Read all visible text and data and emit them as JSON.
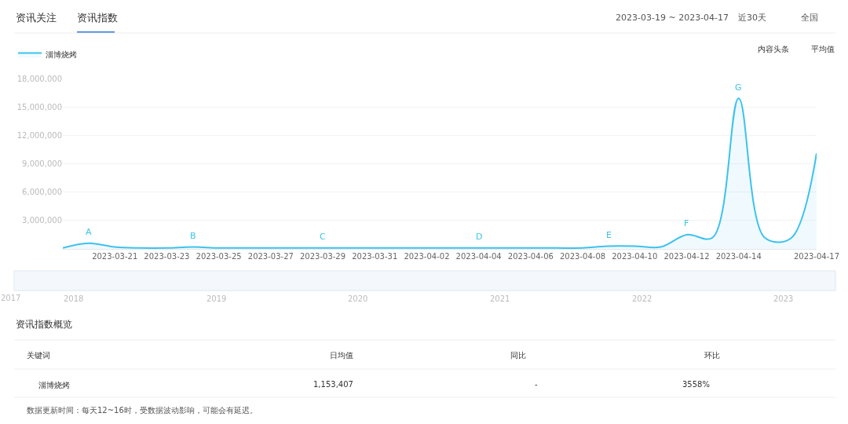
{
  "chart_data": {
    "type": "area",
    "title": "资讯指数",
    "x": [
      "2023-03-19",
      "2023-03-20",
      "2023-03-21",
      "2023-03-22",
      "2023-03-23",
      "2023-03-24",
      "2023-03-25",
      "2023-03-26",
      "2023-03-27",
      "2023-03-28",
      "2023-03-29",
      "2023-03-30",
      "2023-03-31",
      "2023-04-01",
      "2023-04-02",
      "2023-04-03",
      "2023-04-04",
      "2023-04-05",
      "2023-04-06",
      "2023-04-07",
      "2023-04-08",
      "2023-04-09",
      "2023-04-10",
      "2023-04-11",
      "2023-04-12",
      "2023-04-13",
      "2023-04-14",
      "2023-04-15",
      "2023-04-16",
      "2023-04-17"
    ],
    "series": [
      {
        "name": "淄博烧烤",
        "color": "#3cc2ee",
        "values": [
          100000,
          600000,
          200000,
          100000,
          100000,
          200000,
          100000,
          100000,
          100000,
          100000,
          100000,
          100000,
          100000,
          100000,
          100000,
          100000,
          100000,
          100000,
          100000,
          100000,
          100000,
          300000,
          300000,
          200000,
          1500000,
          1200000,
          15900000,
          1200000,
          1100000,
          10100000
        ]
      }
    ],
    "xlim": [
      "2023-03-19",
      "2023-04-17"
    ],
    "xticks": [
      {
        "value": "2023-03-21",
        "label": "2023-03-21"
      },
      {
        "value": "2023-03-23",
        "label": "2023-03-23"
      },
      {
        "value": "2023-03-25",
        "label": "2023-03-25"
      },
      {
        "value": "2023-03-27",
        "label": "2023-03-27"
      },
      {
        "value": "2023-03-29",
        "label": "2023-03-29"
      },
      {
        "value": "2023-03-31",
        "label": "2023-03-31"
      },
      {
        "value": "2023-04-02",
        "label": "2023-04-02"
      },
      {
        "value": "2023-04-04",
        "label": "2023-04-04"
      },
      {
        "value": "2023-04-06",
        "label": "2023-04-06"
      },
      {
        "value": "2023-04-08",
        "label": "2023-04-08"
      },
      {
        "value": "2023-04-10",
        "label": "2023-04-10"
      },
      {
        "value": "2023-04-12",
        "label": "2023-04-12"
      },
      {
        "value": "2023-04-14",
        "label": "2023-04-14"
      },
      {
        "value": "2023-04-17",
        "label": "2023-04-17"
      }
    ],
    "ylim": [
      0,
      18000000
    ],
    "yticks": [
      {
        "value": 3000000,
        "label": "3,000,000"
      },
      {
        "value": 6000000,
        "label": "6,000,000"
      },
      {
        "value": 9000000,
        "label": "9,000,000"
      },
      {
        "value": 12000000,
        "label": "12,000,000"
      },
      {
        "value": 15000000,
        "label": "15,000,000"
      },
      {
        "value": 18000000,
        "label": "18,000,000"
      }
    ],
    "grid": "y",
    "legend": "top left",
    "marker": "none",
    "line_style": "solid",
    "annotations": [
      {
        "text": "A",
        "x": "2023-03-20",
        "y": 600000
      },
      {
        "text": "B",
        "x": "2023-03-24",
        "y": 200000
      },
      {
        "text": "C",
        "x": "2023-03-29",
        "y": 100000
      },
      {
        "text": "D",
        "x": "2023-04-04",
        "y": 100000
      },
      {
        "text": "E",
        "x": "2023-04-09",
        "y": 300000
      },
      {
        "text": "F",
        "x": "2023-04-12",
        "y": 1500000
      },
      {
        "text": "G",
        "x": "2023-04-14",
        "y": 15900000
      },
      "资讯关注",
      "2023-03-19 ~ 2023-04-17",
      "近30天",
      "全国",
      "内容头条",
      "平均值",
      "2017",
      "2018",
      "2019",
      "2020",
      "2021",
      "2022",
      "2023",
      "资讯指数概览",
      "关键词",
      "日均值",
      "同比",
      "环比",
      "淄博烧烤",
      "1,153,407",
      "-",
      "3558%",
      "数据更新时间：每天12~16时，受数据波动影响，可能会有延迟。"
    ]
  }
}
